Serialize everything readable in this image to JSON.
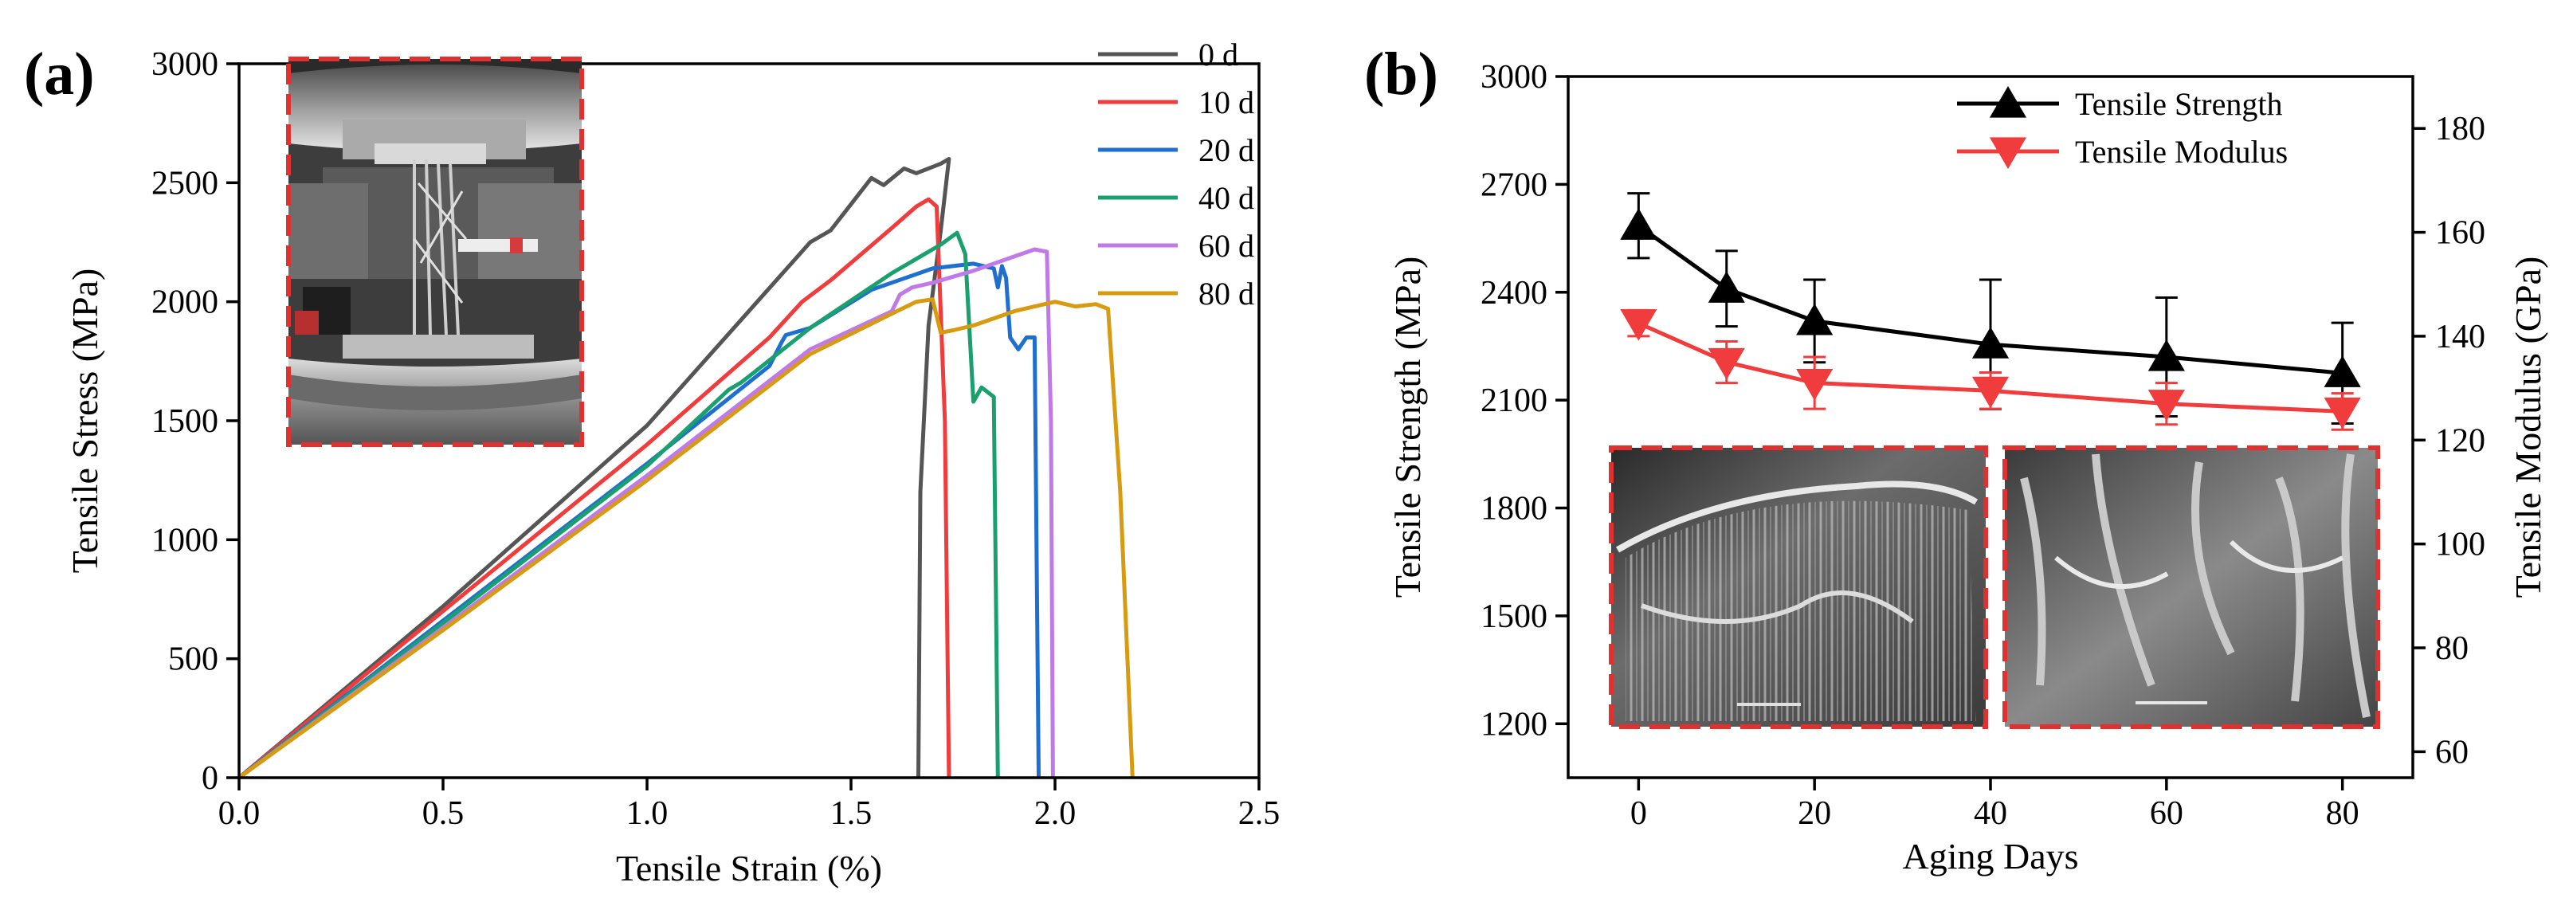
{
  "chart_data": [
    {
      "panel": "(a)",
      "type": "line",
      "title": "",
      "xlabel": "Tensile Strain (%)",
      "ylabel": "Tensile Stress (MPa)",
      "xlim": [
        0,
        2.5
      ],
      "ylim": [
        0,
        3000
      ],
      "xticks": [
        "0.0",
        "0.5",
        "1.0",
        "1.5",
        "2.0",
        "2.5"
      ],
      "yticks": [
        "0",
        "500",
        "1000",
        "1500",
        "2000",
        "2500",
        "3000"
      ],
      "legend_position": "top-right",
      "inset": "photo of specimen in tensile grips",
      "series": [
        {
          "name": "0 d",
          "color": "#555555",
          "points": [
            [
              0,
              0
            ],
            [
              0.5,
              720
            ],
            [
              1.0,
              1480
            ],
            [
              1.4,
              2250
            ],
            [
              1.45,
              2300
            ],
            [
              1.55,
              2520
            ],
            [
              1.58,
              2490
            ],
            [
              1.63,
              2560
            ],
            [
              1.66,
              2540
            ],
            [
              1.72,
              2580
            ],
            [
              1.74,
              2600
            ],
            [
              1.72,
              2300
            ],
            [
              1.69,
              1900
            ],
            [
              1.67,
              1200
            ],
            [
              1.665,
              0
            ]
          ]
        },
        {
          "name": "10 d",
          "color": "#f03c3c",
          "points": [
            [
              0,
              0
            ],
            [
              0.5,
              700
            ],
            [
              1.0,
              1400
            ],
            [
              1.3,
              1850
            ],
            [
              1.38,
              2000
            ],
            [
              1.45,
              2090
            ],
            [
              1.6,
              2310
            ],
            [
              1.66,
              2400
            ],
            [
              1.69,
              2430
            ],
            [
              1.71,
              2400
            ],
            [
              1.73,
              1500
            ],
            [
              1.74,
              0
            ]
          ]
        },
        {
          "name": "20 d",
          "color": "#1f6fd1",
          "points": [
            [
              0,
              0
            ],
            [
              0.5,
              660
            ],
            [
              1.0,
              1320
            ],
            [
              1.3,
              1730
            ],
            [
              1.33,
              1830
            ],
            [
              1.34,
              1860
            ],
            [
              1.4,
              1890
            ],
            [
              1.55,
              2050
            ],
            [
              1.7,
              2140
            ],
            [
              1.8,
              2160
            ],
            [
              1.85,
              2140
            ],
            [
              1.86,
              2060
            ],
            [
              1.87,
              2150
            ],
            [
              1.88,
              2100
            ],
            [
              1.89,
              1850
            ],
            [
              1.91,
              1800
            ],
            [
              1.93,
              1850
            ],
            [
              1.95,
              1850
            ],
            [
              1.96,
              0
            ]
          ]
        },
        {
          "name": "40 d",
          "color": "#1aa06e",
          "points": [
            [
              0,
              0
            ],
            [
              0.5,
              650
            ],
            [
              1.0,
              1310
            ],
            [
              1.2,
              1630
            ],
            [
              1.23,
              1660
            ],
            [
              1.26,
              1700
            ],
            [
              1.4,
              1890
            ],
            [
              1.6,
              2120
            ],
            [
              1.72,
              2240
            ],
            [
              1.76,
              2290
            ],
            [
              1.78,
              2200
            ],
            [
              1.8,
              1580
            ],
            [
              1.82,
              1640
            ],
            [
              1.85,
              1600
            ],
            [
              1.86,
              0
            ]
          ]
        },
        {
          "name": "60 d",
          "color": "#c07ae8",
          "points": [
            [
              0,
              0
            ],
            [
              0.5,
              630
            ],
            [
              1.0,
              1270
            ],
            [
              1.4,
              1800
            ],
            [
              1.6,
              1960
            ],
            [
              1.62,
              2030
            ],
            [
              1.65,
              2060
            ],
            [
              1.7,
              2080
            ],
            [
              1.8,
              2130
            ],
            [
              1.9,
              2190
            ],
            [
              1.95,
              2220
            ],
            [
              1.98,
              2210
            ],
            [
              1.99,
              1500
            ],
            [
              1.995,
              0
            ]
          ]
        },
        {
          "name": "80 d",
          "color": "#d79b12",
          "points": [
            [
              0,
              0
            ],
            [
              0.5,
              620
            ],
            [
              1.0,
              1250
            ],
            [
              1.4,
              1780
            ],
            [
              1.6,
              1950
            ],
            [
              1.66,
              2000
            ],
            [
              1.7,
              2010
            ],
            [
              1.72,
              1870
            ],
            [
              1.75,
              1880
            ],
            [
              1.8,
              1900
            ],
            [
              1.85,
              1930
            ],
            [
              1.9,
              1960
            ],
            [
              1.95,
              1980
            ],
            [
              2.0,
              2000
            ],
            [
              2.05,
              1980
            ],
            [
              2.1,
              1990
            ],
            [
              2.13,
              1970
            ],
            [
              2.16,
              1200
            ],
            [
              2.19,
              0
            ]
          ]
        }
      ]
    },
    {
      "panel": "(b)",
      "type": "line",
      "title": "",
      "xlabel": "Aging Days",
      "ylabel": "Tensile Strength (MPa)",
      "ylabel_right": "Tensile Modulus (GPa)",
      "xlim": [
        -8,
        88
      ],
      "ylim": [
        1050,
        3000
      ],
      "ylim_right": [
        55,
        190
      ],
      "xticks": [
        "0",
        "20",
        "40",
        "60",
        "80"
      ],
      "yticks": [
        "1200",
        "1500",
        "1800",
        "2100",
        "2400",
        "2700",
        "3000"
      ],
      "yticks_right": [
        "60",
        "80",
        "100",
        "120",
        "140",
        "160",
        "180"
      ],
      "legend_position": "top-right",
      "inset": "two SEM fracture-surface micrographs",
      "x": [
        0,
        10,
        20,
        40,
        60,
        80
      ],
      "series": [
        {
          "name": "Tensile Strength",
          "color": "#000000",
          "marker": "triangle-up",
          "axis": "left",
          "values": [
            2585,
            2410,
            2320,
            2255,
            2220,
            2175
          ],
          "errors": [
            90,
            105,
            115,
            180,
            165,
            140
          ]
        },
        {
          "name": "Tensile Modulus",
          "color": "#f03c3c",
          "marker": "triangle-down",
          "axis": "right",
          "values": [
            142.5,
            135,
            131,
            129.5,
            127,
            125.5
          ],
          "errors": [
            2.5,
            4,
            5,
            3.5,
            4,
            3.5
          ]
        }
      ]
    }
  ]
}
